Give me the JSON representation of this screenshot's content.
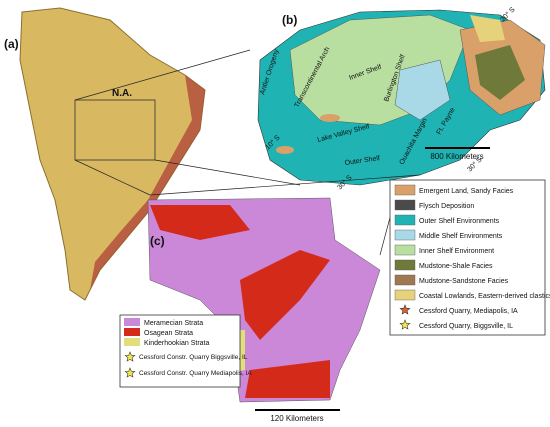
{
  "panels": {
    "a": {
      "label": "(a)",
      "annotation": "N.A."
    },
    "b": {
      "label": "(b)",
      "annotations": [
        "Antler Orogeny",
        "Transcontinental Arch",
        "Inner Shelf",
        "Burlington Shelf",
        "Lake Valley Shelf",
        "Outer Shelf",
        "Ouachita Margin",
        "Ft. Payne",
        "10° S",
        "20° S",
        "30° S",
        "30° S"
      ],
      "scale": "800 Kilometers"
    },
    "c": {
      "label": "(c)",
      "scale": "120 Kilometers"
    }
  },
  "legend_b": {
    "items": [
      {
        "label": "Emergent Land, Sandy Facies",
        "color": "#d9a06a"
      },
      {
        "label": "Flysch Deposition",
        "color": "#4a4a4a"
      },
      {
        "label": "Outer Shelf Environments",
        "color": "#1fb3b3"
      },
      {
        "label": "Middle Shelf Environments",
        "color": "#a9d8e6"
      },
      {
        "label": "Inner Shelf Environment",
        "color": "#b8dea0"
      },
      {
        "label": "Mudstone-Shale Facies",
        "color": "#6f7a3a"
      },
      {
        "label": "Mudstone-Sandstone Facies",
        "color": "#a07850"
      },
      {
        "label": "Coastal Lowlands, Eastern-derived clastics",
        "color": "#e6d27a"
      },
      {
        "label": "Cessford Quarry, Mediapolis, IA",
        "color": "#e0602a"
      },
      {
        "label": "Cessford Quarry, Biggsville, IL",
        "color": "#f2e84a"
      }
    ]
  },
  "legend_c": {
    "items": [
      {
        "label": "Meramecian Strata",
        "color": "#cc88d8"
      },
      {
        "label": "Osagean Strata",
        "color": "#d42a1a"
      },
      {
        "label": "Kinderhookian Strata",
        "color": "#e2df7a"
      },
      {
        "label": "Cessford Constr. Quarry Biggsville, IL",
        "color": "#f2e84a"
      },
      {
        "label": "Cessford Constr. Quarry Mediapolis, IA",
        "color": "#f2e84a"
      }
    ]
  }
}
